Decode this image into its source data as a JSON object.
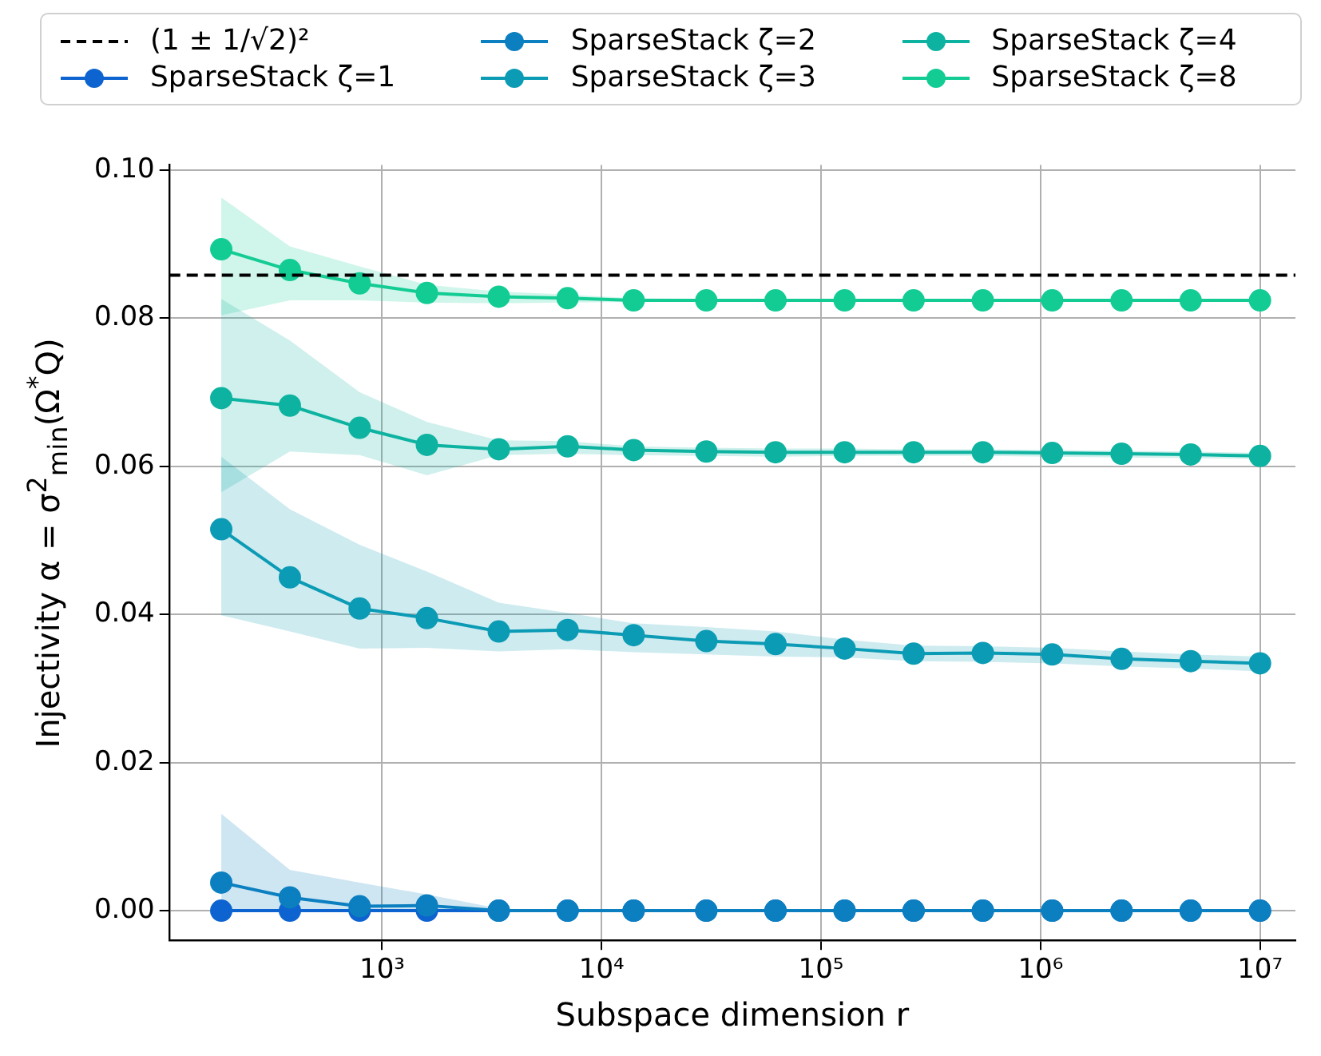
{
  "chart_data": {
    "type": "line",
    "xlabel": "Subspace dimension r",
    "ylabel": "Injectivity α = σ$^{2}$$_{min}$(Ω$^{*}$Q)",
    "x": [
      185,
      380,
      790,
      1600,
      3400,
      7000,
      14000,
      30000,
      62000,
      128000,
      264000,
      546000,
      1130000,
      2340000,
      4830000,
      10000000
    ],
    "series": [
      {
        "name": "SparseStack ζ=1",
        "color": "#0d63cf",
        "values": [
          0,
          0,
          0,
          0,
          0,
          0,
          0,
          0,
          0,
          0,
          0,
          0,
          0,
          0,
          0,
          0
        ]
      },
      {
        "name": "SparseStack ζ=2",
        "color": "#0b7fc0",
        "values": [
          0.0038,
          0.0018,
          0.0006,
          0.0007,
          0,
          0,
          0,
          0,
          0,
          0,
          0,
          0,
          0,
          0,
          0,
          0
        ],
        "lower": [
          0,
          0,
          0,
          0,
          0,
          0,
          0,
          0,
          0,
          0,
          0,
          0,
          0,
          0,
          0,
          0
        ],
        "upper": [
          0.0131,
          0.0055,
          0.0038,
          0.0022,
          0.0003,
          0,
          0,
          0,
          0,
          0,
          0,
          0,
          0,
          0,
          0,
          0
        ]
      },
      {
        "name": "SparseStack ζ=3",
        "color": "#0b9bb5",
        "values": [
          0.0515,
          0.045,
          0.0408,
          0.0395,
          0.0377,
          0.0379,
          0.0372,
          0.0364,
          0.036,
          0.0354,
          0.0347,
          0.0348,
          0.0346,
          0.034,
          0.0337,
          0.0334
        ],
        "lower": [
          0.0399,
          0.0377,
          0.0354,
          0.0355,
          0.035,
          0.0353,
          0.0349,
          0.0346,
          0.0343,
          0.0342,
          0.0337,
          0.0336,
          0.0334,
          0.033,
          0.0327,
          0.0323
        ],
        "upper": [
          0.0613,
          0.0542,
          0.0494,
          0.0458,
          0.0416,
          0.0402,
          0.0388,
          0.0383,
          0.0377,
          0.0366,
          0.0358,
          0.0357,
          0.0355,
          0.035,
          0.0346,
          0.0343
        ]
      },
      {
        "name": "SparseStack ζ=4",
        "color": "#0db3a0",
        "values": [
          0.0692,
          0.0682,
          0.0652,
          0.0629,
          0.0623,
          0.0627,
          0.0622,
          0.062,
          0.0619,
          0.0619,
          0.0619,
          0.0619,
          0.0618,
          0.0617,
          0.0616,
          0.0614
        ],
        "lower": [
          0.0565,
          0.062,
          0.0615,
          0.0588,
          0.0615,
          0.0617,
          0.0615,
          0.0614,
          0.0613,
          0.0614,
          0.0614,
          0.0614,
          0.0613,
          0.0612,
          0.0611,
          0.061
        ],
        "upper": [
          0.0826,
          0.077,
          0.07,
          0.066,
          0.0635,
          0.0634,
          0.0627,
          0.0625,
          0.0624,
          0.0624,
          0.0623,
          0.0623,
          0.0622,
          0.0621,
          0.062,
          0.0618
        ]
      },
      {
        "name": "SparseStack ζ=8",
        "color": "#12cc94",
        "values": [
          0.0893,
          0.0865,
          0.0847,
          0.0834,
          0.0829,
          0.0827,
          0.0824,
          0.0824,
          0.0824,
          0.0824,
          0.0824,
          0.0824,
          0.0824,
          0.0824,
          0.0824,
          0.0824
        ],
        "lower": [
          0.0804,
          0.0824,
          0.0824,
          0.0821,
          0.082,
          0.0821,
          0.0822,
          0.0822,
          0.0822,
          0.0822,
          0.0822,
          0.0822,
          0.0822,
          0.0822,
          0.0822,
          0.0822
        ],
        "upper": [
          0.0963,
          0.0897,
          0.087,
          0.0845,
          0.0836,
          0.0832,
          0.0827,
          0.0826,
          0.0826,
          0.0826,
          0.0826,
          0.0826,
          0.0826,
          0.0826,
          0.0826,
          0.0826
        ]
      }
    ],
    "ref_lines": [
      {
        "axis": "y",
        "value": 0.0858,
        "label": "(1 ± 1/√2)²",
        "color": "#000000",
        "line_style": "dashed"
      }
    ],
    "log": "x",
    "xlim": [
      107,
      14500000
    ],
    "xticks": [
      {
        "value": 1000,
        "label": "10³"
      },
      {
        "value": 10000,
        "label": "10⁴"
      },
      {
        "value": 100000,
        "label": "10⁵"
      },
      {
        "value": 1000000,
        "label": "10⁶"
      },
      {
        "value": 10000000,
        "label": "10⁷"
      }
    ],
    "ylim": [
      -0.004,
      0.1007
    ],
    "yticks": [
      {
        "value": 0,
        "label": "0.00"
      },
      {
        "value": 0.02,
        "label": "0.02"
      },
      {
        "value": 0.04,
        "label": "0.04"
      },
      {
        "value": 0.06,
        "label": "0.06"
      },
      {
        "value": 0.08,
        "label": "0.08"
      },
      {
        "value": 0.1,
        "label": "0.10"
      }
    ],
    "grid": true,
    "legend": "top",
    "marker": "circle",
    "line_style": "solid"
  }
}
